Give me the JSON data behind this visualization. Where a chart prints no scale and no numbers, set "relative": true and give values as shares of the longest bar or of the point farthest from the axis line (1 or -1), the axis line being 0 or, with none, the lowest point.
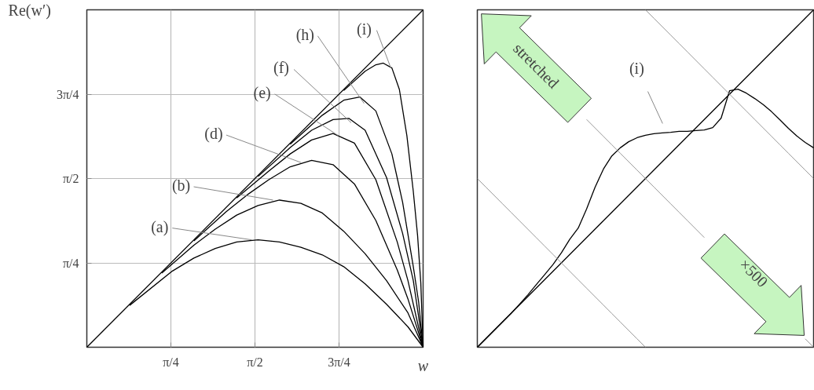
{
  "chart_data": [
    {
      "type": "line",
      "xlabel": "w",
      "ylabel": "Re(w′)",
      "xlim": [
        0,
        3.1416
      ],
      "ylim": [
        0,
        3.1416
      ],
      "xticks": [
        {
          "value": 0.7854,
          "label": "π/4"
        },
        {
          "value": 1.5708,
          "label": "π/2"
        },
        {
          "value": 2.3562,
          "label": "3π/4"
        }
      ],
      "yticks": [
        {
          "value": 0.7854,
          "label": "π/4"
        },
        {
          "value": 1.5708,
          "label": "π/2"
        },
        {
          "value": 2.3562,
          "label": "3π/4"
        }
      ],
      "grid": true,
      "series": [
        {
          "color": "#000000",
          "x": [
            0,
            3.14
          ],
          "values": [
            0,
            3.14
          ]
        },
        {
          "color": "#000000",
          "x": [
            0.4,
            0.8,
            1.0,
            1.2,
            1.4,
            1.6,
            1.8,
            2.0,
            2.2,
            2.4,
            2.6,
            2.8,
            3.0,
            3.1416
          ],
          "values": [
            0.39,
            0.71,
            0.83,
            0.92,
            0.98,
            1.0,
            0.98,
            0.93,
            0.86,
            0.75,
            0.59,
            0.4,
            0.19,
            0
          ]
        },
        {
          "color": "#000000",
          "x": [
            0.7,
            1.0,
            1.2,
            1.4,
            1.6,
            1.8,
            2.0,
            2.2,
            2.4,
            2.6,
            2.8,
            3.0,
            3.1416
          ],
          "values": [
            0.69,
            0.95,
            1.1,
            1.23,
            1.32,
            1.37,
            1.34,
            1.25,
            1.08,
            0.87,
            0.62,
            0.32,
            0
          ]
        },
        {
          "color": "#000000",
          "x": [
            1.0,
            1.3,
            1.5,
            1.7,
            1.9,
            2.1,
            2.3,
            2.5,
            2.7,
            2.9,
            3.0,
            3.1416
          ],
          "values": [
            0.99,
            1.26,
            1.42,
            1.56,
            1.68,
            1.74,
            1.7,
            1.52,
            1.18,
            0.72,
            0.45,
            0
          ]
        },
        {
          "color": "#000000",
          "x": [
            1.4,
            1.7,
            1.9,
            2.1,
            2.3,
            2.5,
            2.7,
            2.9,
            3.0,
            3.1416
          ],
          "values": [
            1.39,
            1.64,
            1.8,
            1.93,
            1.99,
            1.9,
            1.56,
            0.98,
            0.62,
            0
          ]
        },
        {
          "color": "#000000",
          "x": [
            1.6,
            1.9,
            2.1,
            2.3,
            2.45,
            2.6,
            2.8,
            2.95,
            3.05,
            3.1416
          ],
          "values": [
            1.59,
            1.86,
            2.02,
            2.12,
            2.13,
            2.02,
            1.58,
            1.06,
            0.62,
            0
          ]
        },
        {
          "color": "#000000",
          "x": [
            1.9,
            2.2,
            2.4,
            2.55,
            2.7,
            2.85,
            2.95,
            3.05,
            3.1,
            3.1416
          ],
          "values": [
            1.89,
            2.16,
            2.3,
            2.33,
            2.2,
            1.8,
            1.35,
            0.75,
            0.42,
            0
          ]
        },
        {
          "color": "#000000",
          "x": [
            2.4,
            2.6,
            2.7,
            2.77,
            2.85,
            2.92,
            2.99,
            3.05,
            3.09,
            3.12,
            3.1416
          ],
          "values": [
            2.39,
            2.57,
            2.63,
            2.645,
            2.6,
            2.4,
            1.97,
            1.45,
            1.04,
            0.6,
            0
          ]
        }
      ],
      "annotations": [
        {
          "text": "(a)",
          "x": 1.54,
          "y": 1.0
        },
        {
          "text": "(b)",
          "x": 1.74,
          "y": 1.37
        },
        {
          "text": "(d)",
          "x": 2.0,
          "y": 1.72
        },
        {
          "text": "(e)",
          "x": 2.35,
          "y": 1.97
        },
        {
          "text": "(f)",
          "x": 2.47,
          "y": 2.09
        },
        {
          "text": "(h)",
          "x": 2.59,
          "y": 2.27
        },
        {
          "text": "(i)",
          "x": 2.84,
          "y": 2.6
        }
      ]
    },
    {
      "type": "line",
      "relative": true,
      "categories": [
        null,
        null,
        null,
        null,
        null,
        null,
        null,
        null,
        null,
        null,
        null,
        null,
        null,
        null,
        null,
        null,
        null,
        null,
        null,
        null,
        null,
        null,
        null,
        null,
        null,
        null,
        null,
        null,
        null,
        null,
        null,
        null,
        null,
        null,
        null,
        null,
        null,
        null,
        null,
        null,
        null
      ],
      "series": [
        {
          "color": "#000000",
          "values": [
            0,
            0.025,
            0.05,
            0.075,
            0.1,
            0.125,
            0.15,
            0.175,
            0.2,
            0.225,
            0.25,
            0.275,
            0.3,
            0.325,
            0.35,
            0.375,
            0.4,
            0.425,
            0.45,
            0.475,
            0.5,
            0.525,
            0.55,
            0.575,
            0.6,
            0.625,
            0.65,
            0.675,
            0.7,
            0.725,
            0.75,
            0.775,
            0.8,
            0.825,
            0.85,
            0.875,
            0.9,
            0.925,
            0.95,
            0.975,
            1.0
          ]
        },
        {
          "color": "#000000",
          "values": [
            0,
            0.025,
            0.05,
            0.075,
            0.1,
            0.127,
            0.155,
            0.185,
            0.215,
            0.245,
            0.28,
            0.32,
            0.353,
            0.41,
            0.474,
            0.528,
            0.567,
            0.591,
            0.609,
            0.621,
            0.628,
            0.633,
            0.635,
            0.637,
            0.64,
            0.64,
            0.642,
            0.644,
            0.651,
            0.679,
            0.76,
            0.765,
            0.753,
            0.737,
            0.719,
            0.698,
            0.674,
            0.649,
            0.626,
            0.607,
            0.591
          ]
        },
        {
          "color": "#999999",
          "values": [
            0.5,
            0.475,
            0.45,
            0.425,
            0.4,
            0.375,
            0.35,
            0.325,
            0.3,
            0.275,
            0.25,
            0.225,
            0.2,
            0.175,
            0.15,
            0.125,
            0.1,
            0.075,
            0.05,
            0.025,
            0,
            null,
            null,
            null,
            null,
            null,
            null,
            null,
            null,
            null,
            null,
            null,
            null,
            null,
            null,
            null,
            null,
            null,
            null,
            null,
            null
          ]
        },
        {
          "color": "#999999",
          "values": [
            null,
            null,
            null,
            null,
            null,
            null,
            null,
            null,
            null,
            null,
            null,
            null,
            null,
            0.675,
            0.65,
            0.625,
            0.6,
            0.575,
            0.55,
            0.525,
            0.5,
            0.475,
            0.45,
            0.425,
            0.4,
            0.375,
            0.35,
            0.325,
            null,
            null,
            null,
            null,
            null,
            null,
            null,
            null,
            null,
            null,
            null,
            0.025,
            0
          ]
        },
        {
          "color": "#999999",
          "values": [
            null,
            null,
            null,
            null,
            null,
            null,
            null,
            null,
            null,
            null,
            null,
            null,
            null,
            null,
            null,
            null,
            null,
            null,
            null,
            null,
            1.0,
            0.975,
            0.95,
            0.925,
            0.9,
            0.875,
            0.85,
            0.825,
            0.8,
            0.775,
            0.75,
            0.725,
            0.7,
            0.675,
            0.65,
            0.625,
            0.6,
            0.575,
            0.55,
            0.525,
            0.5
          ]
        }
      ],
      "annotations": [
        "(i)",
        "stretched",
        "×500"
      ]
    }
  ]
}
